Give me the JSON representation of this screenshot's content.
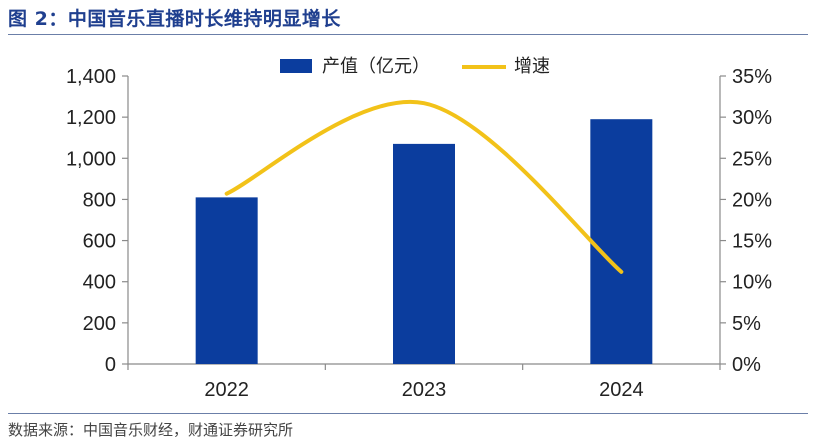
{
  "figure": {
    "title": "图 2：中国音乐直播时长维持明显增长",
    "source": "数据来源：中国音乐财经，财通证券研究所"
  },
  "colors": {
    "bar": "#0b3d9e",
    "line": "#f2c219",
    "title": "#1f3f8f",
    "axis": "#8a8a8a"
  },
  "chart_data": {
    "type": "bar",
    "categories": [
      "2022",
      "2023",
      "2024"
    ],
    "series": [
      {
        "name": "产值（亿元）",
        "type": "bar",
        "axis": "left",
        "values": [
          810,
          1070,
          1190
        ]
      },
      {
        "name": "增速",
        "type": "line",
        "axis": "right",
        "smooth": true,
        "values": [
          0.207,
          0.317,
          0.112
        ]
      }
    ],
    "ylim": [
      0,
      1400
    ],
    "yticks": [
      "0",
      "200",
      "400",
      "600",
      "800",
      "1,000",
      "1,200",
      "1,400"
    ],
    "y2lim": [
      0,
      0.35
    ],
    "y2ticks": [
      "0%",
      "5%",
      "10%",
      "15%",
      "20%",
      "25%",
      "30%",
      "35%"
    ],
    "legend": "top-center",
    "grid": false
  }
}
